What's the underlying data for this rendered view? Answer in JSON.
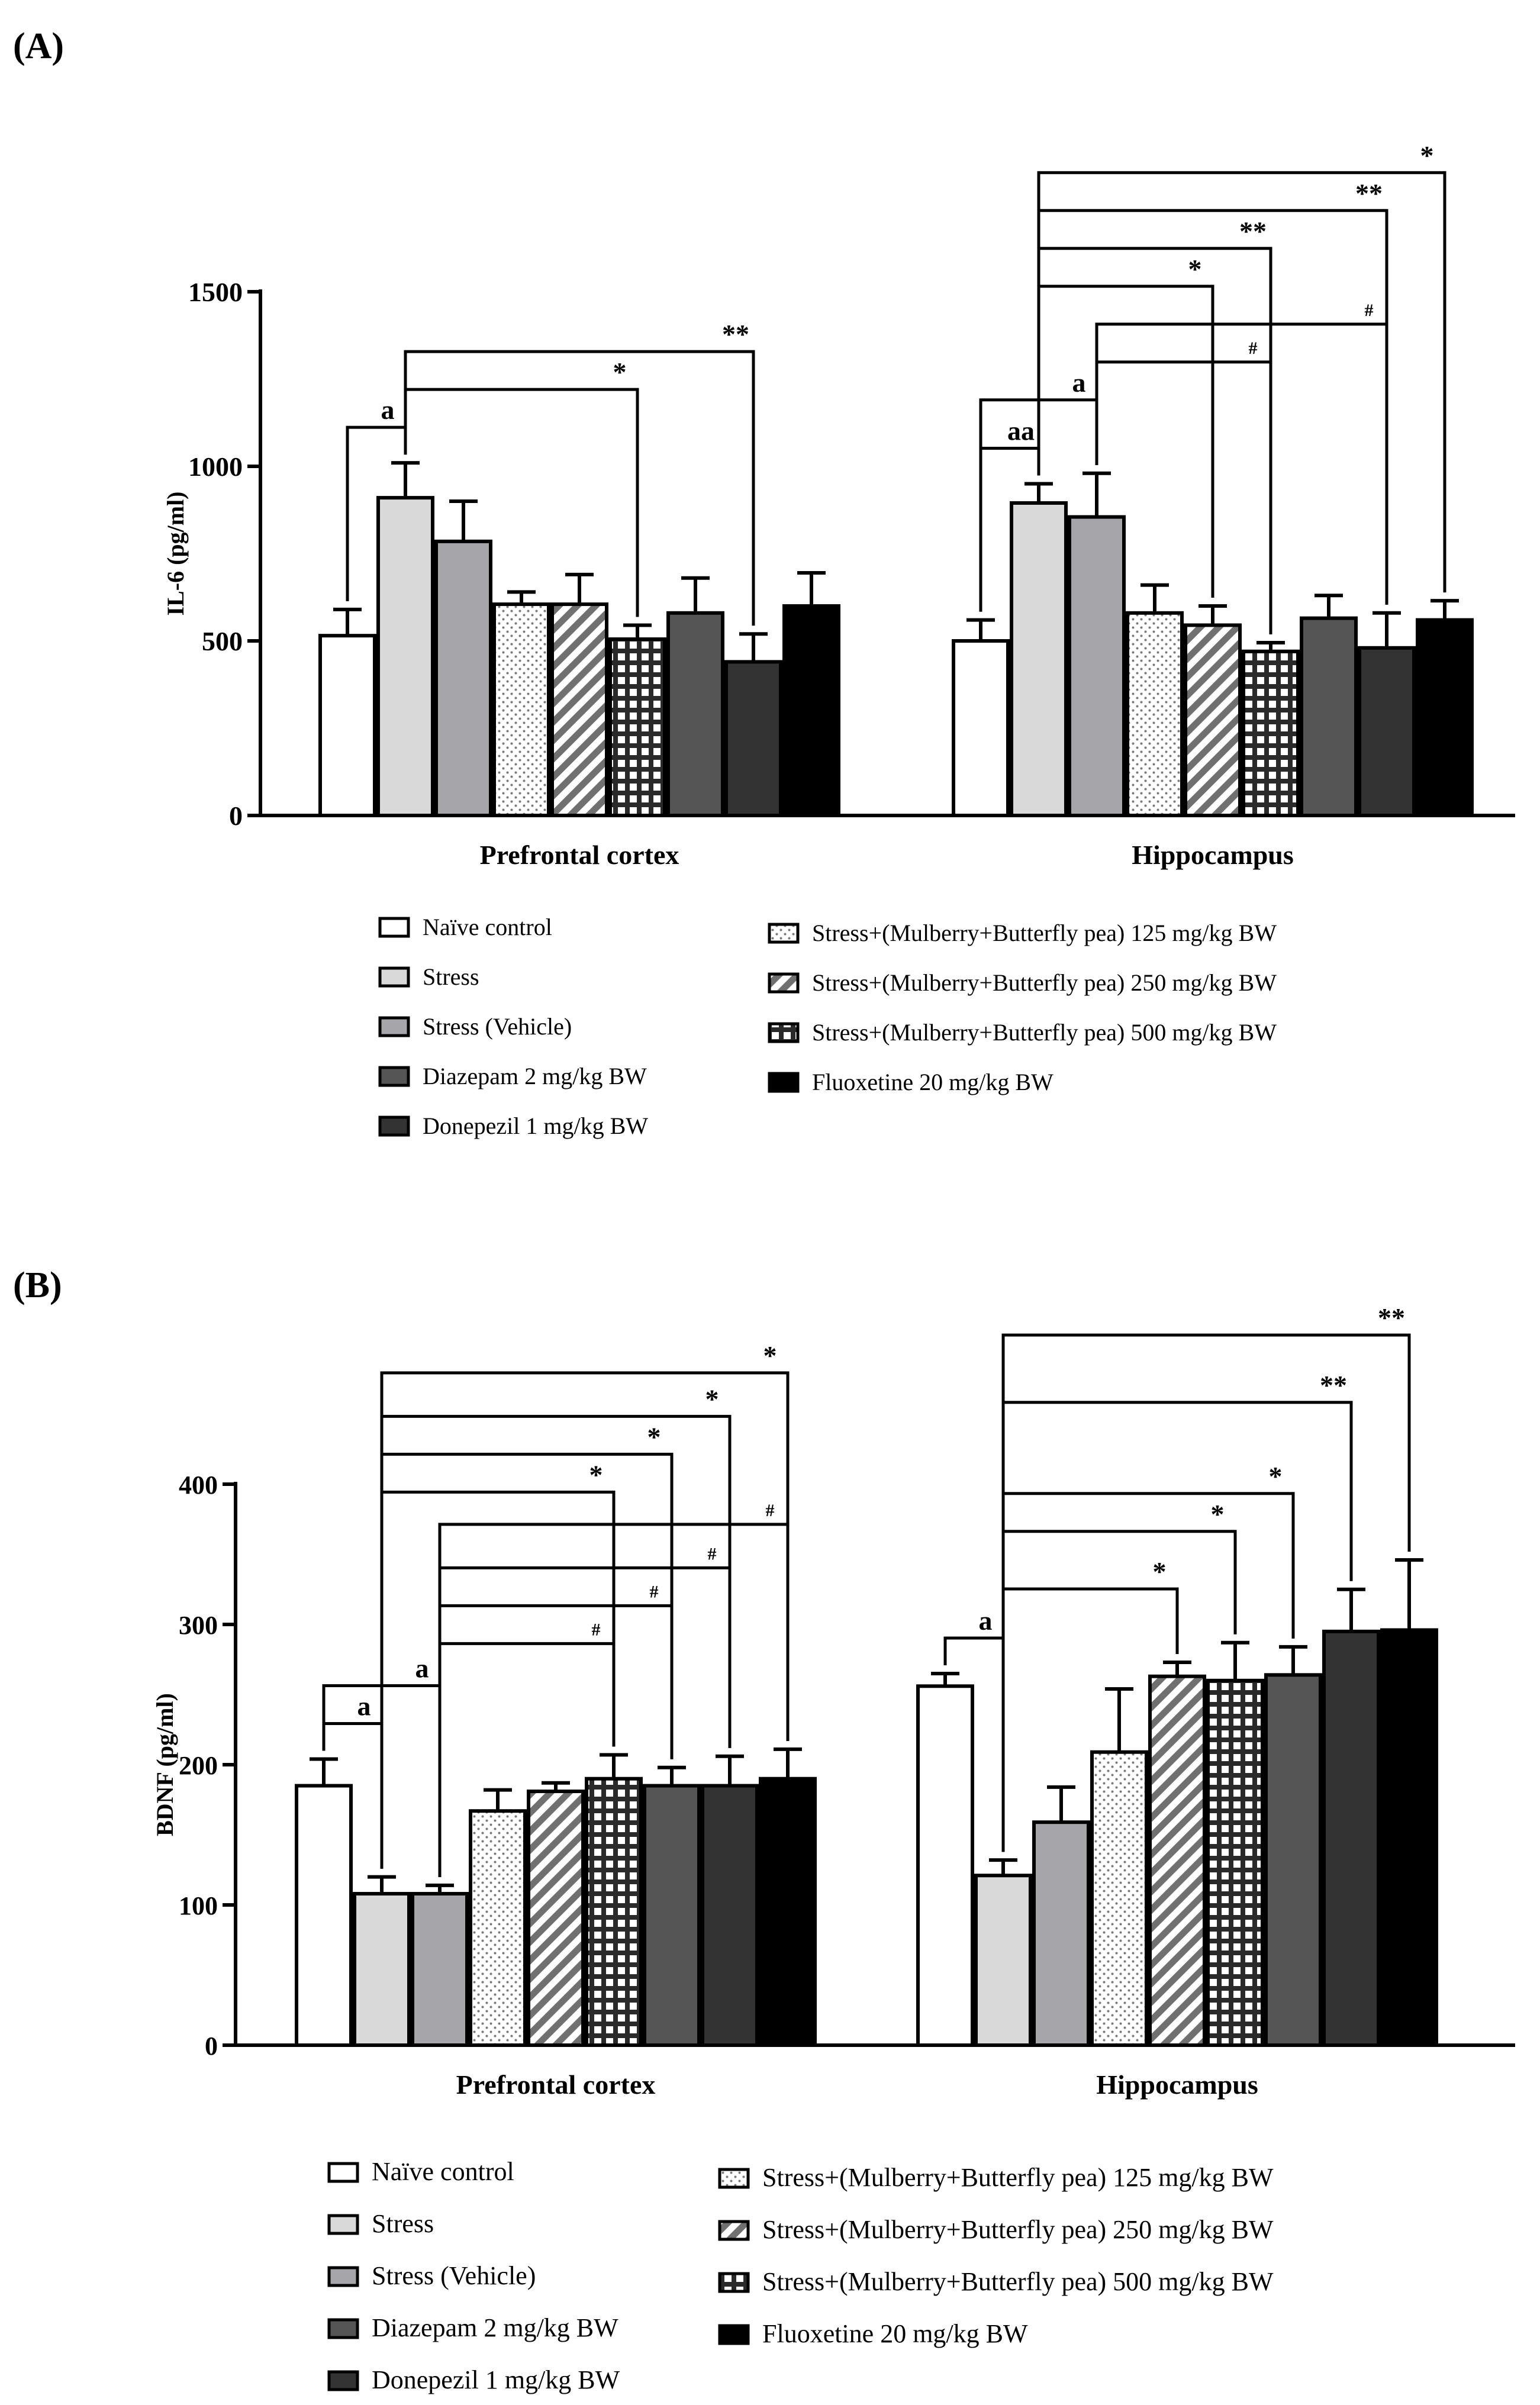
{
  "figure": {
    "panel_labels": [
      "(A)",
      "(B)"
    ]
  },
  "legend": {
    "groups": [
      {
        "label": "Naïve control",
        "fill": "#ffffff",
        "pattern": "solid"
      },
      {
        "label": "Stress",
        "fill": "#d9d9d9",
        "pattern": "solid"
      },
      {
        "label": "Stress (Vehicle)",
        "fill": "#a6a6aa",
        "pattern": "solid"
      },
      {
        "label": "Stress+(Mulberry+Butterfly pea) 125 mg/kg BW",
        "fill": "#ffffff",
        "pattern": "dots"
      },
      {
        "label": "Stress+(Mulberry+Butterfly pea) 250 mg/kg BW",
        "fill": "#ffffff",
        "pattern": "diagonal"
      },
      {
        "label": "Stress+(Mulberry+Butterfly pea) 500 mg/kg BW",
        "fill": "#ffffff",
        "pattern": "grid"
      },
      {
        "label": "Diazepam 2 mg/kg BW",
        "fill": "#555555",
        "pattern": "solid"
      },
      {
        "label": "Donepezil 1 mg/kg BW",
        "fill": "#333333",
        "pattern": "solid"
      },
      {
        "label": "Fluoxetine 20 mg/kg BW",
        "fill": "#000000",
        "pattern": "solid"
      }
    ],
    "left_column_order": [
      0,
      1,
      2,
      6,
      7
    ],
    "right_column_order": [
      3,
      4,
      5,
      8
    ]
  },
  "chart_data": [
    {
      "panel": "(A)",
      "type": "bar",
      "title": "",
      "xlabel": "",
      "ylabel": "IL-6 (pg/ml)",
      "ylim": [
        0,
        1500
      ],
      "yticks": [
        "0",
        "500",
        "1000",
        "1500"
      ],
      "categories": [
        "Prefrontal cortex",
        "Hippocampus"
      ],
      "series": [
        {
          "name": "Naïve control",
          "values": [
            515,
            500
          ],
          "errors": [
            75,
            60
          ]
        },
        {
          "name": "Stress",
          "values": [
            910,
            895
          ],
          "errors": [
            100,
            55
          ]
        },
        {
          "name": "Stress (Vehicle)",
          "values": [
            785,
            855
          ],
          "errors": [
            115,
            125
          ]
        },
        {
          "name": "Stress+(Mulberry+Butterfly pea) 125 mg/kg BW",
          "values": [
            605,
            580
          ],
          "errors": [
            35,
            80
          ]
        },
        {
          "name": "Stress+(Mulberry+Butterfly pea) 250 mg/kg BW",
          "values": [
            605,
            545
          ],
          "errors": [
            85,
            55
          ]
        },
        {
          "name": "Stress+(Mulberry+Butterfly pea) 500 mg/kg BW",
          "values": [
            505,
            470
          ],
          "errors": [
            40,
            25
          ]
        },
        {
          "name": "Diazepam 2 mg/kg BW",
          "values": [
            580,
            565
          ],
          "errors": [
            100,
            65
          ]
        },
        {
          "name": "Donepezil 1 mg/kg BW",
          "values": [
            440,
            480
          ],
          "errors": [
            80,
            100
          ]
        },
        {
          "name": "Fluoxetine 20 mg/kg BW",
          "values": [
            600,
            560
          ],
          "errors": [
            95,
            55
          ]
        }
      ],
      "significance": [
        {
          "category": 0,
          "from": 0,
          "to": 1,
          "label": "a"
        },
        {
          "category": 0,
          "from": 1,
          "to": 5,
          "label": "*"
        },
        {
          "category": 0,
          "from": 1,
          "to": 7,
          "label": "**"
        },
        {
          "category": 1,
          "from": 0,
          "to": 1,
          "label": "aa"
        },
        {
          "category": 1,
          "from": 0,
          "to": 2,
          "label": "a"
        },
        {
          "category": 1,
          "from": 2,
          "to": 5,
          "label": "#"
        },
        {
          "category": 1,
          "from": 2,
          "to": 7,
          "label": "#"
        },
        {
          "category": 1,
          "from": 1,
          "to": 4,
          "label": "*"
        },
        {
          "category": 1,
          "from": 1,
          "to": 5,
          "label": "**"
        },
        {
          "category": 1,
          "from": 1,
          "to": 7,
          "label": "**"
        },
        {
          "category": 1,
          "from": 1,
          "to": 8,
          "label": "*"
        }
      ]
    },
    {
      "panel": "(B)",
      "type": "bar",
      "title": "",
      "xlabel": "",
      "ylabel": "BDNF (pg/ml)",
      "ylim": [
        0,
        400
      ],
      "yticks": [
        "0",
        "100",
        "200",
        "300",
        "400"
      ],
      "categories": [
        "Prefrontal cortex",
        "Hippocampus"
      ],
      "series": [
        {
          "name": "Naïve control",
          "values": [
            185,
            256
          ],
          "errors": [
            19,
            9
          ]
        },
        {
          "name": "Stress",
          "values": [
            108,
            121
          ],
          "errors": [
            12,
            11
          ]
        },
        {
          "name": "Stress (Vehicle)",
          "values": [
            108,
            159
          ],
          "errors": [
            6,
            25
          ]
        },
        {
          "name": "Stress+(Mulberry+Butterfly pea) 125 mg/kg BW",
          "values": [
            167,
            209
          ],
          "errors": [
            15,
            45
          ]
        },
        {
          "name": "Stress+(Mulberry+Butterfly pea) 250 mg/kg BW",
          "values": [
            181,
            263
          ],
          "errors": [
            6,
            10
          ]
        },
        {
          "name": "Stress+(Mulberry+Butterfly pea) 500 mg/kg BW",
          "values": [
            190,
            260
          ],
          "errors": [
            17,
            27
          ]
        },
        {
          "name": "Diazepam 2 mg/kg BW",
          "values": [
            185,
            264
          ],
          "errors": [
            13,
            20
          ]
        },
        {
          "name": "Donepezil 1 mg/kg BW",
          "values": [
            185,
            295
          ],
          "errors": [
            21,
            30
          ]
        },
        {
          "name": "Fluoxetine 20 mg/kg BW",
          "values": [
            190,
            296
          ],
          "errors": [
            21,
            50
          ]
        }
      ],
      "significance": [
        {
          "category": 0,
          "from": 0,
          "to": 1,
          "label": "a"
        },
        {
          "category": 0,
          "from": 0,
          "to": 2,
          "label": "a"
        },
        {
          "category": 0,
          "from": 2,
          "to": 5,
          "label": "#"
        },
        {
          "category": 0,
          "from": 2,
          "to": 6,
          "label": "#"
        },
        {
          "category": 0,
          "from": 2,
          "to": 7,
          "label": "#"
        },
        {
          "category": 0,
          "from": 2,
          "to": 8,
          "label": "#"
        },
        {
          "category": 0,
          "from": 1,
          "to": 5,
          "label": "*"
        },
        {
          "category": 0,
          "from": 1,
          "to": 6,
          "label": "*"
        },
        {
          "category": 0,
          "from": 1,
          "to": 7,
          "label": "*"
        },
        {
          "category": 0,
          "from": 1,
          "to": 8,
          "label": "*"
        },
        {
          "category": 1,
          "from": 0,
          "to": 1,
          "label": "a"
        },
        {
          "category": 1,
          "from": 1,
          "to": 4,
          "label": "*"
        },
        {
          "category": 1,
          "from": 1,
          "to": 5,
          "label": "*"
        },
        {
          "category": 1,
          "from": 1,
          "to": 6,
          "label": "*"
        },
        {
          "category": 1,
          "from": 1,
          "to": 7,
          "label": "**"
        },
        {
          "category": 1,
          "from": 1,
          "to": 8,
          "label": "**"
        }
      ]
    }
  ]
}
